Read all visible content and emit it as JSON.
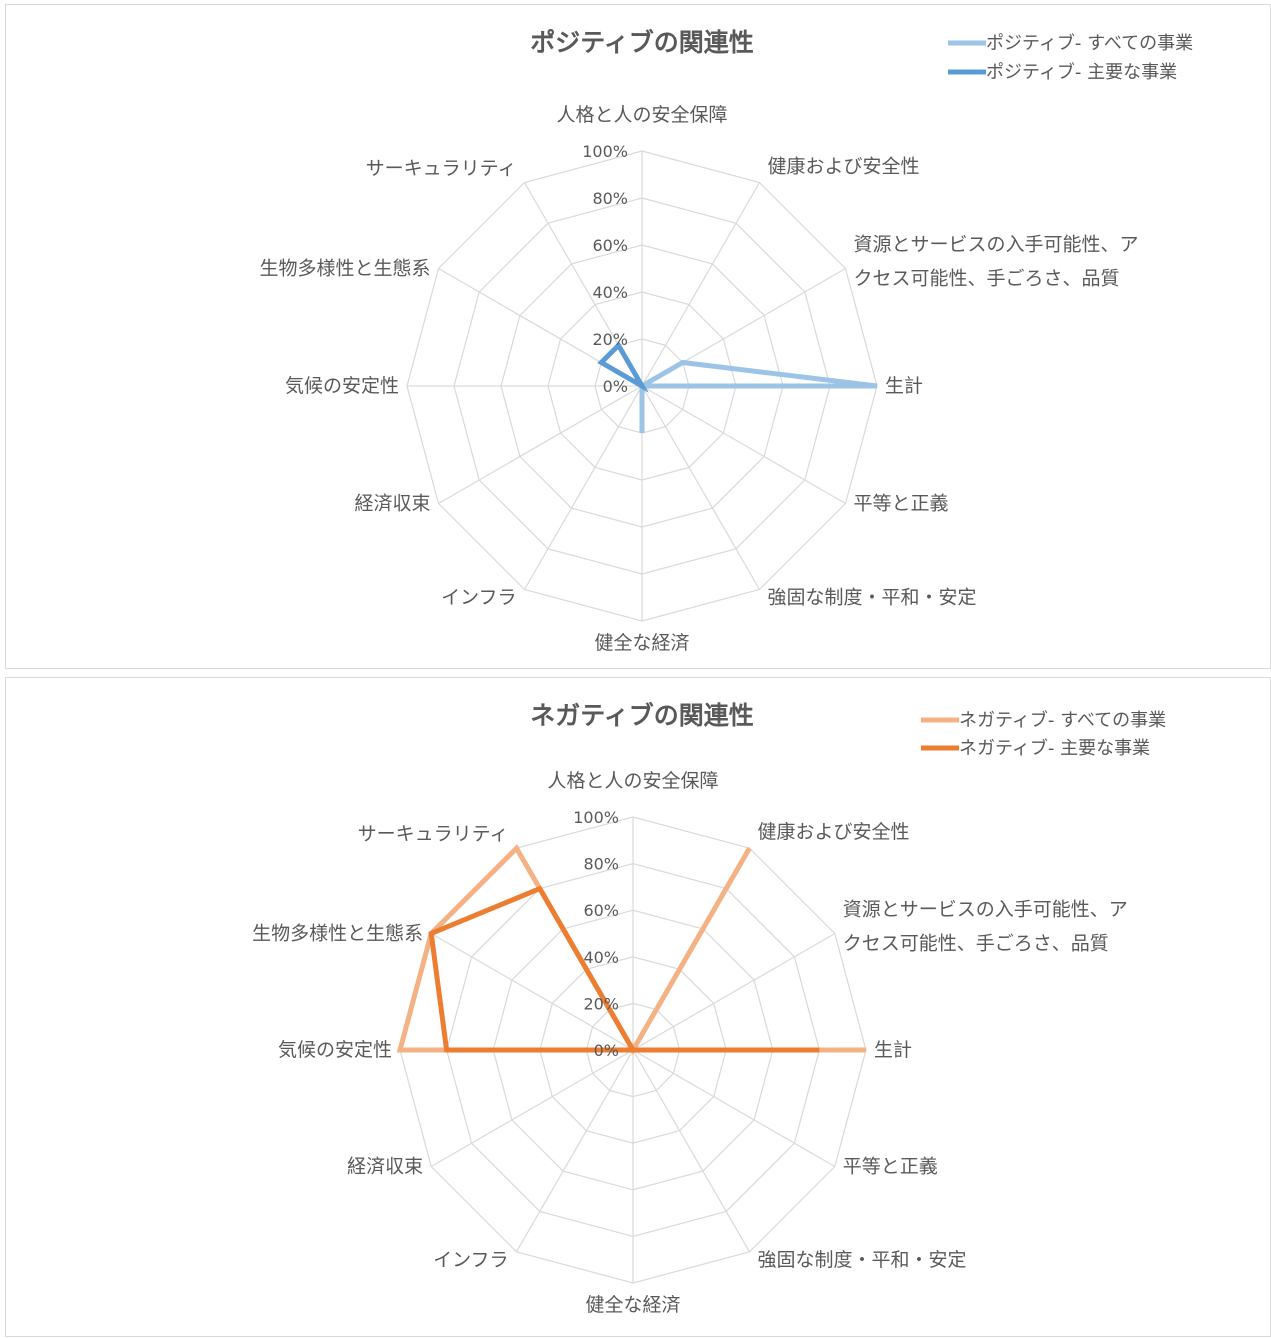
{
  "chart_data": [
    {
      "type": "radar",
      "title": "ポジティブの関連性",
      "categories": [
        "人格と人の安全保障",
        "健康および安全性",
        "資源とサービスの入手可能性、アクセス可能性、手ごろさ、品質",
        "生計",
        "平等と正義",
        "強固な制度・平和・安定",
        "健全な経済",
        "インフラ",
        "経済収束",
        "気候の安定性",
        "生物多様性と生態系",
        "サーキュラリティ"
      ],
      "category_lines": [
        [
          "人格と人の安全保障"
        ],
        [
          "健康および安全性"
        ],
        [
          "資源とサービスの入手可能性、ア",
          "クセス可能性、手ごろさ、品質"
        ],
        [
          "生計"
        ],
        [
          "平等と正義"
        ],
        [
          "強固な制度・平和・安定"
        ],
        [
          "健全な経済"
        ],
        [
          "インフラ"
        ],
        [
          "経済収束"
        ],
        [
          "気候の安定性"
        ],
        [
          "生物多様性と生態系"
        ],
        [
          "サーキュラリティ"
        ]
      ],
      "series": [
        {
          "name": "ポジティブ- すべての事業",
          "color": "#9dc3e6",
          "values": [
            0,
            0,
            0.2,
            1.0,
            0,
            0,
            0.2,
            0,
            0,
            0,
            0,
            0
          ]
        },
        {
          "name": "ポジティブ- 主要な事業",
          "color": "#5b9bd5",
          "values": [
            0,
            0,
            0,
            0,
            0,
            0,
            0,
            0,
            0,
            0,
            0.2,
            0.2
          ]
        }
      ],
      "rlim": [
        0,
        1
      ],
      "ticks": [
        "0%",
        "20%",
        "40%",
        "60%",
        "80%",
        "100%"
      ],
      "legend": "top-right",
      "grid": true
    },
    {
      "type": "radar",
      "title": "ネガティブの関連性",
      "categories": [
        "人格と人の安全保障",
        "健康および安全性",
        "資源とサービスの入手可能性、アクセス可能性、手ごろさ、品質",
        "生計",
        "平等と正義",
        "強固な制度・平和・安定",
        "健全な経済",
        "インフラ",
        "経済収束",
        "気候の安定性",
        "生物多様性と生態系",
        "サーキュラリティ"
      ],
      "category_lines": [
        [
          "人格と人の安全保障"
        ],
        [
          "健康および安全性"
        ],
        [
          "資源とサービスの入手可能性、ア",
          "クセス可能性、手ごろさ、品質"
        ],
        [
          "生計"
        ],
        [
          "平等と正義"
        ],
        [
          "強固な制度・平和・安定"
        ],
        [
          "健全な経済"
        ],
        [
          "インフラ"
        ],
        [
          "経済収束"
        ],
        [
          "気候の安定性"
        ],
        [
          "生物多様性と生態系"
        ],
        [
          "サーキュラリティ"
        ]
      ],
      "series": [
        {
          "name": "ネガティブ- すべての事業",
          "color": "#f4b183",
          "values": [
            0,
            1.0,
            0,
            1.0,
            0,
            0,
            0,
            0,
            0,
            1.0,
            1.0,
            1.0
          ]
        },
        {
          "name": "ネガティブ- 主要な事業",
          "color": "#ed7d31",
          "values": [
            0,
            0,
            0,
            0.8,
            0,
            0,
            0,
            0,
            0,
            0.8,
            1.0,
            0.8
          ]
        }
      ],
      "rlim": [
        0,
        1
      ],
      "ticks": [
        "0%",
        "20%",
        "40%",
        "60%",
        "80%",
        "100%"
      ],
      "legend": "top-right",
      "grid": true
    }
  ]
}
